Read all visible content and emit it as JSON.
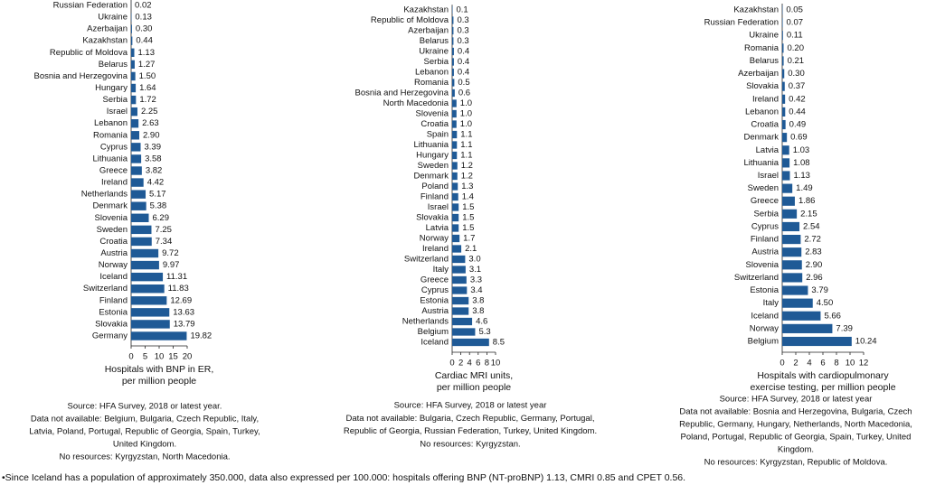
{
  "chart_data": [
    {
      "type": "bar",
      "orientation": "horizontal",
      "color": "#1f5a96",
      "x_label": [
        "Hospitals with BNP in ER,",
        "per million people"
      ],
      "categories": [
        "Russian Federation",
        "Ukraine",
        "Azerbaijan",
        "Kazakhstan",
        "Republic of Moldova",
        "Belarus",
        "Bosnia and Herzegovina",
        "Hungary",
        "Serbia",
        "Israel",
        "Lebanon",
        "Romania",
        "Cyprus",
        "Lithuania",
        "Greece",
        "Ireland",
        "Netherlands",
        "Denmark",
        "Slovenia",
        "Sweden",
        "Croatia",
        "Austria",
        "Norway",
        "Iceland",
        "Switzerland",
        "Finland",
        "Estonia",
        "Slovakia",
        "Germany"
      ],
      "values": [
        0.02,
        0.13,
        0.3,
        0.44,
        1.13,
        1.27,
        1.5,
        1.64,
        1.72,
        2.25,
        2.63,
        2.9,
        3.39,
        3.58,
        3.82,
        4.42,
        5.17,
        5.38,
        6.29,
        7.25,
        7.34,
        9.72,
        9.97,
        11.31,
        11.83,
        12.69,
        13.63,
        13.79,
        19.82
      ],
      "value_labels": [
        "0.02",
        "0.13",
        "0.30",
        "0.44",
        "1.13",
        "1.27",
        "1.50",
        "1.64",
        "1.72",
        "2.25",
        "2.63",
        "2.90",
        "3.39",
        "3.58",
        "3.82",
        "4.42",
        "5.17",
        "5.38",
        "6.29",
        "7.25",
        "7.34",
        "9.72",
        "9.97",
        "11.31",
        "11.83",
        "12.69",
        "13.63",
        "13.79",
        "19.82"
      ],
      "xlim": [
        0,
        20
      ],
      "xticks": [
        0,
        5,
        10,
        15,
        20
      ],
      "notes": [
        "Source: HFA Survey, 2018 or latest year.",
        "Data not available: Belgium, Bulgaria, Czech Republic, Italy,",
        "Latvia, Poland, Portugal, Republic of Georgia, Spain, Turkey,",
        "United Kingdom.",
        "No resources: Kyrgyzstan, North Macedonia."
      ]
    },
    {
      "type": "bar",
      "orientation": "horizontal",
      "color": "#1f5a96",
      "x_label": [
        "Cardiac MRI units,",
        "per million people"
      ],
      "categories": [
        "Kazakhstan",
        "Republic of Moldova",
        "Azerbaijan",
        "Belarus",
        "Ukraine",
        "Serbia",
        "Lebanon",
        "Romania",
        "Bosnia and Herzegovina",
        "North Macedonia",
        "Slovenia",
        "Croatia",
        "Spain",
        "Lithuania",
        "Hungary",
        "Sweden",
        "Denmark",
        "Poland",
        "Finland",
        "Israel",
        "Slovakia",
        "Latvia",
        "Norway",
        "Ireland",
        "Switzerland",
        "Italy",
        "Greece",
        "Cyprus",
        "Estonia",
        "Austria",
        "Netherlands",
        "Belgium",
        "Iceland"
      ],
      "values": [
        0.1,
        0.3,
        0.3,
        0.3,
        0.4,
        0.4,
        0.4,
        0.5,
        0.6,
        1.0,
        1.0,
        1.0,
        1.1,
        1.1,
        1.1,
        1.2,
        1.2,
        1.3,
        1.4,
        1.5,
        1.5,
        1.5,
        1.7,
        2.1,
        3.0,
        3.1,
        3.3,
        3.4,
        3.8,
        3.8,
        4.6,
        5.3,
        8.5
      ],
      "value_labels": [
        "0.1",
        "0.3",
        "0.3",
        "0.3",
        "0.4",
        "0.4",
        "0.4",
        "0.5",
        "0.6",
        "1.0",
        "1.0",
        "1.0",
        "1.1",
        "1.1",
        "1.1",
        "1.2",
        "1.2",
        "1.3",
        "1.4",
        "1.5",
        "1.5",
        "1.5",
        "1.7",
        "2.1",
        "3.0",
        "3.1",
        "3.3",
        "3.4",
        "3.8",
        "3.8",
        "4.6",
        "5.3",
        "8.5"
      ],
      "xlim": [
        0,
        10
      ],
      "xticks": [
        0,
        2,
        4,
        6,
        8,
        10
      ],
      "notes": [
        "Source: HFA Survey, 2018 or latest year",
        "Data not available: Bulgaria, Czech Republic, Germany, Portugal,",
        "Republic of Georgia, Russian Federation, Turkey, United Kingdom.",
        "No resources: Kyrgyzstan."
      ]
    },
    {
      "type": "bar",
      "orientation": "horizontal",
      "color": "#1f5a96",
      "x_label": [
        "Hospitals with cardiopulmonary",
        "exercise testing, per million people"
      ],
      "categories": [
        "Kazakhstan",
        "Russian Federation",
        "Ukraine",
        "Romania",
        "Belarus",
        "Azerbaijan",
        "Slovakia",
        "Ireland",
        "Lebanon",
        "Croatia",
        "Denmark",
        "Latvia",
        "Lithuania",
        "Israel",
        "Sweden",
        "Greece",
        "Serbia",
        "Cyprus",
        "Finland",
        "Austria",
        "Slovenia",
        "Switzerland",
        "Estonia",
        "Italy",
        "Iceland",
        "Norway",
        "Belgium"
      ],
      "values": [
        0.05,
        0.07,
        0.11,
        0.2,
        0.21,
        0.3,
        0.37,
        0.42,
        0.44,
        0.49,
        0.69,
        1.03,
        1.08,
        1.13,
        1.49,
        1.86,
        2.15,
        2.54,
        2.72,
        2.83,
        2.9,
        2.96,
        3.79,
        4.5,
        5.66,
        7.39,
        10.24
      ],
      "value_labels": [
        "0.05",
        "0.07",
        "0.11",
        "0.20",
        "0.21",
        "0.30",
        "0.37",
        "0.42",
        "0.44",
        "0.49",
        "0.69",
        "1.03",
        "1.08",
        "1.13",
        "1.49",
        "1.86",
        "2.15",
        "2.54",
        "2.72",
        "2.83",
        "2.90",
        "2.96",
        "3.79",
        "4.50",
        "5.66",
        "7.39",
        "10.24"
      ],
      "xlim": [
        0,
        12
      ],
      "xticks": [
        0,
        2,
        4,
        6,
        8,
        10,
        12
      ],
      "notes": [
        "Source: HFA Survey, 2018 or latest year",
        "Data not available: Bosnia and Herzegovina, Bulgaria, Czech",
        "Republic, Germany, Hungary, Netherlands, North Macedonia,",
        "Poland, Portugal, Republic of Georgia, Spain, Turkey, United",
        "Kingdom.",
        "No resources: Kyrgyzstan, Republic of Moldova."
      ]
    }
  ],
  "footnote": "•Since Iceland has a population of approximately 350.000, data also expressed per 100.000: hospitals offering BNP (NT-proBNP) 1.13, CMRI 0.85 and CPET 0.56."
}
